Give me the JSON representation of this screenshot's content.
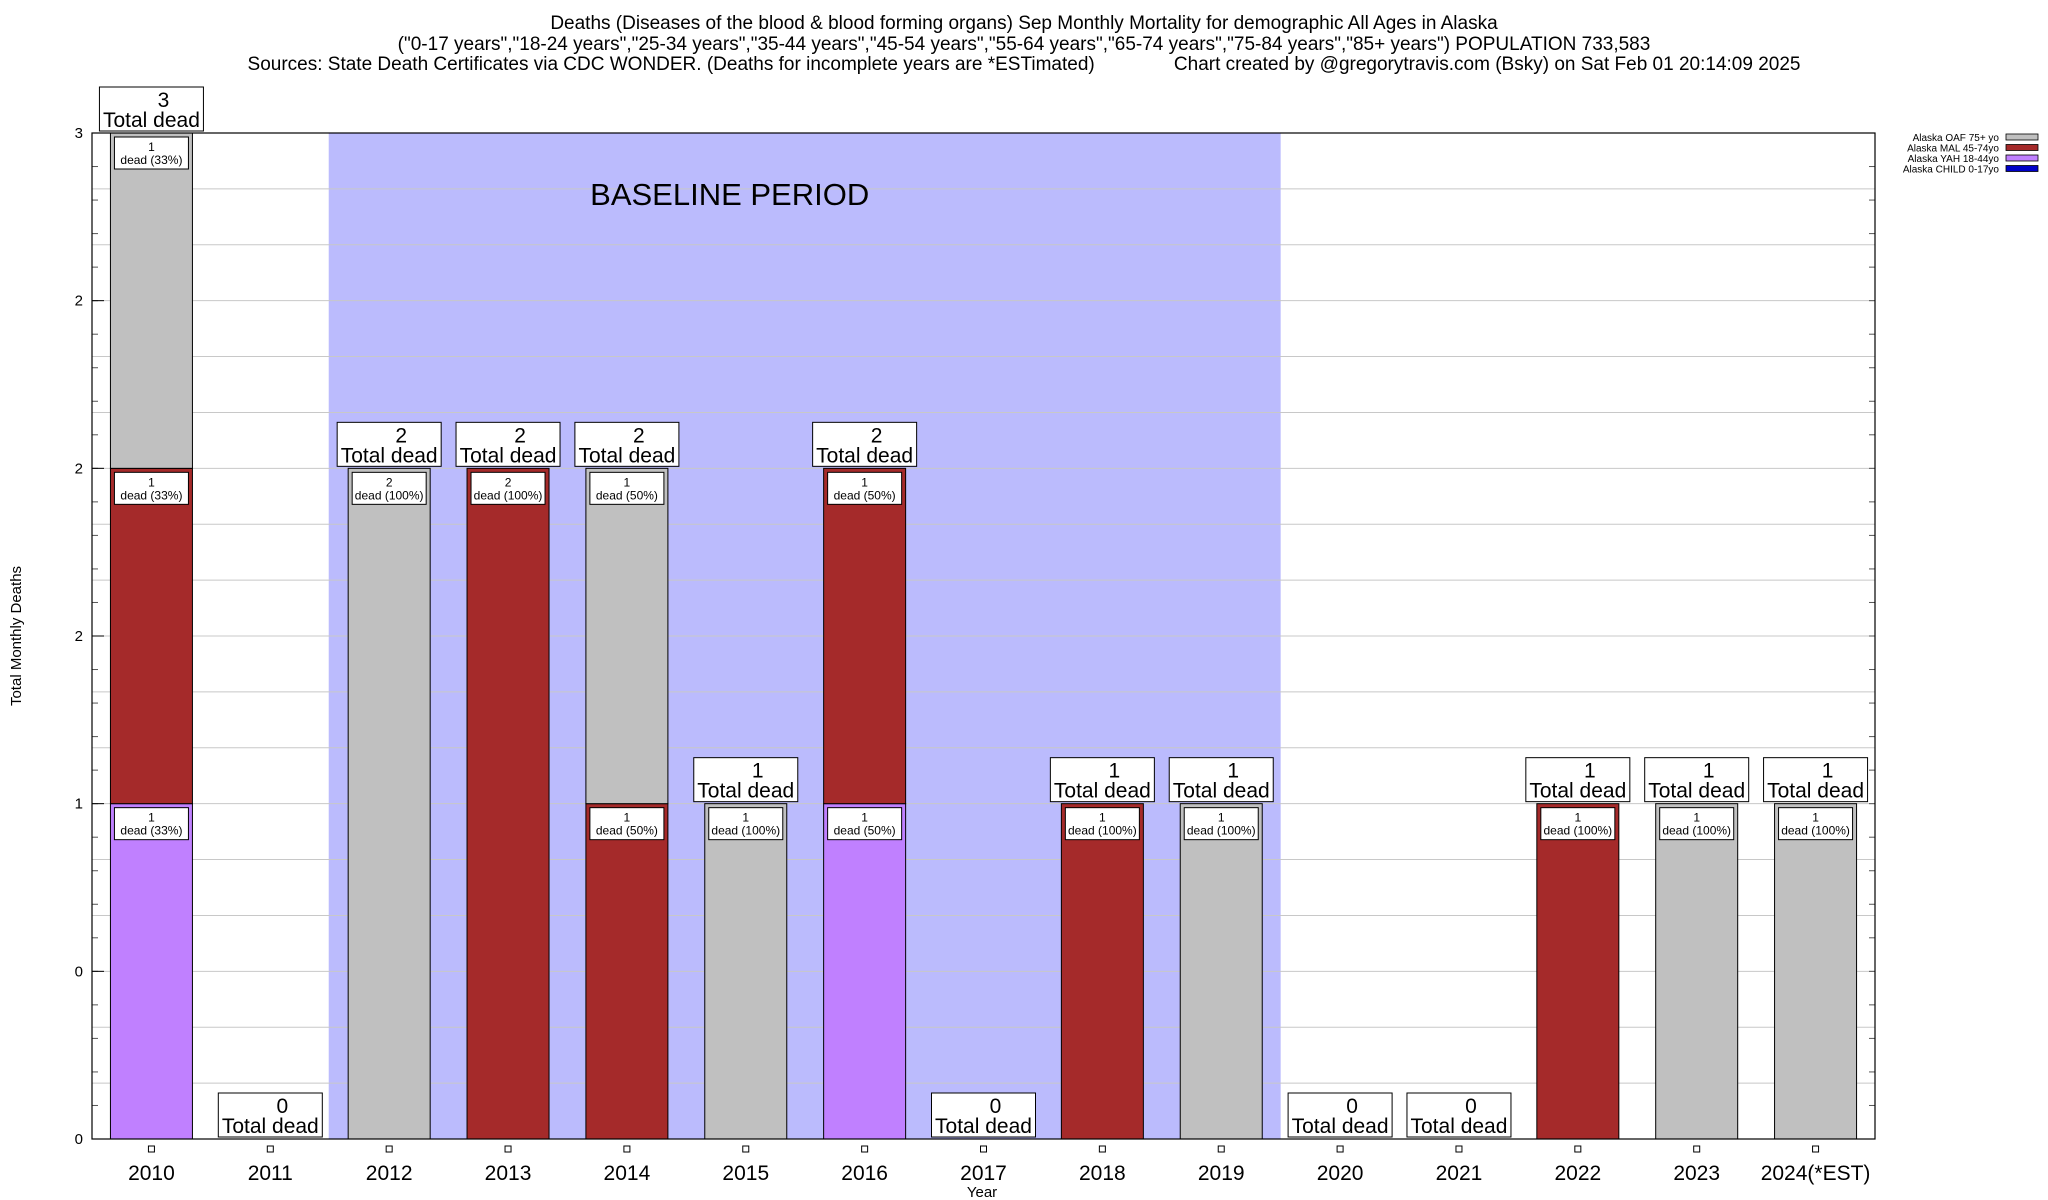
{
  "chart_data": {
    "type": "bar",
    "stacked": true,
    "title": "Deaths (Diseases of the blood & blood forming organs) Sep Monthly Mortality for demographic All Ages in Alaska",
    "subtitle": "(\"0-17 years\",\"18-24 years\",\"25-34 years\",\"35-44 years\",\"45-54 years\",\"55-64 years\",\"65-74 years\",\"75-84 years\",\"85+ years\") POPULATION 733,583",
    "sources": "Sources: State Death Certificates via CDC WONDER. (Deaths for incomplete years are *ESTimated)",
    "credit": "Chart created by @gregorytravis.com (Bsky) on Sat Feb 01 20:14:09 2025",
    "xlabel": "Year",
    "ylabel": "Total Monthly Deaths",
    "ylim": [
      0,
      3
    ],
    "y_ticks": [
      {
        "v": 0,
        "label": "0"
      },
      {
        "v": 0.5,
        "label": "0"
      },
      {
        "v": 1,
        "label": "1"
      },
      {
        "v": 1.5,
        "label": "2"
      },
      {
        "v": 2,
        "label": "2"
      },
      {
        "v": 2.5,
        "label": "2"
      },
      {
        "v": 3,
        "label": "3"
      }
    ],
    "grid": true,
    "legend_position": "top-right",
    "baseline_label": "BASELINE PERIOD",
    "baseline_range": [
      "2012",
      "2019"
    ],
    "categories": [
      "2010",
      "2011",
      "2012",
      "2013",
      "2014",
      "2015",
      "2016",
      "2017",
      "2018",
      "2019",
      "2020",
      "2021",
      "2022",
      "2023",
      "2024(*EST)"
    ],
    "series": [
      {
        "name": "Alaska CHILD 0-17yo",
        "color": "#0000c8",
        "values": [
          0,
          0,
          0,
          0,
          0,
          0,
          0,
          0,
          0,
          0,
          0,
          0,
          0,
          0,
          0
        ]
      },
      {
        "name": "Alaska YAH 18-44yo",
        "color": "#c080ff",
        "values": [
          1,
          0,
          0,
          0,
          0,
          0,
          1,
          0,
          0,
          0,
          0,
          0,
          0,
          0,
          0
        ]
      },
      {
        "name": "Alaska MAL 45-74yo",
        "color": "#a52a2a",
        "values": [
          1,
          0,
          0,
          2,
          1,
          0,
          1,
          0,
          1,
          0,
          0,
          0,
          1,
          0,
          0
        ]
      },
      {
        "name": "Alaska OAF 75+ yo",
        "color": "#c0c0c0",
        "values": [
          1,
          0,
          2,
          0,
          1,
          1,
          0,
          0,
          0,
          1,
          0,
          0,
          0,
          1,
          1
        ]
      }
    ],
    "legend_order": [
      "Alaska OAF 75+ yo",
      "Alaska MAL 45-74yo",
      "Alaska YAH 18-44yo",
      "Alaska CHILD 0-17yo"
    ],
    "totals": [
      3,
      0,
      2,
      2,
      2,
      1,
      2,
      0,
      1,
      1,
      0,
      0,
      1,
      1,
      1
    ],
    "total_suffix": "Total dead",
    "segment_labels": [
      [
        {
          "n": "1",
          "t": "dead (33%)"
        },
        {
          "n": "1",
          "t": "dead (33%)"
        },
        {
          "n": "1",
          "t": "dead (33%)"
        }
      ],
      [],
      [
        {
          "n": "2",
          "t": "dead (100%)"
        }
      ],
      [
        {
          "n": "2",
          "t": "dead (100%)"
        }
      ],
      [
        {
          "n": "1",
          "t": "dead (50%)"
        },
        {
          "n": "1",
          "t": "dead (50%)"
        }
      ],
      [
        {
          "n": "1",
          "t": "dead (100%)"
        }
      ],
      [
        {
          "n": "1",
          "t": "dead (50%)"
        },
        {
          "n": "1",
          "t": "dead (50%)"
        }
      ],
      [],
      [
        {
          "n": "1",
          "t": "dead (100%)"
        }
      ],
      [
        {
          "n": "1",
          "t": "dead (100%)"
        }
      ],
      [],
      [],
      [
        {
          "n": "1",
          "t": "dead (100%)"
        }
      ],
      [
        {
          "n": "1",
          "t": "dead (100%)"
        }
      ],
      [
        {
          "n": "1",
          "t": "dead (100%)"
        }
      ]
    ]
  }
}
